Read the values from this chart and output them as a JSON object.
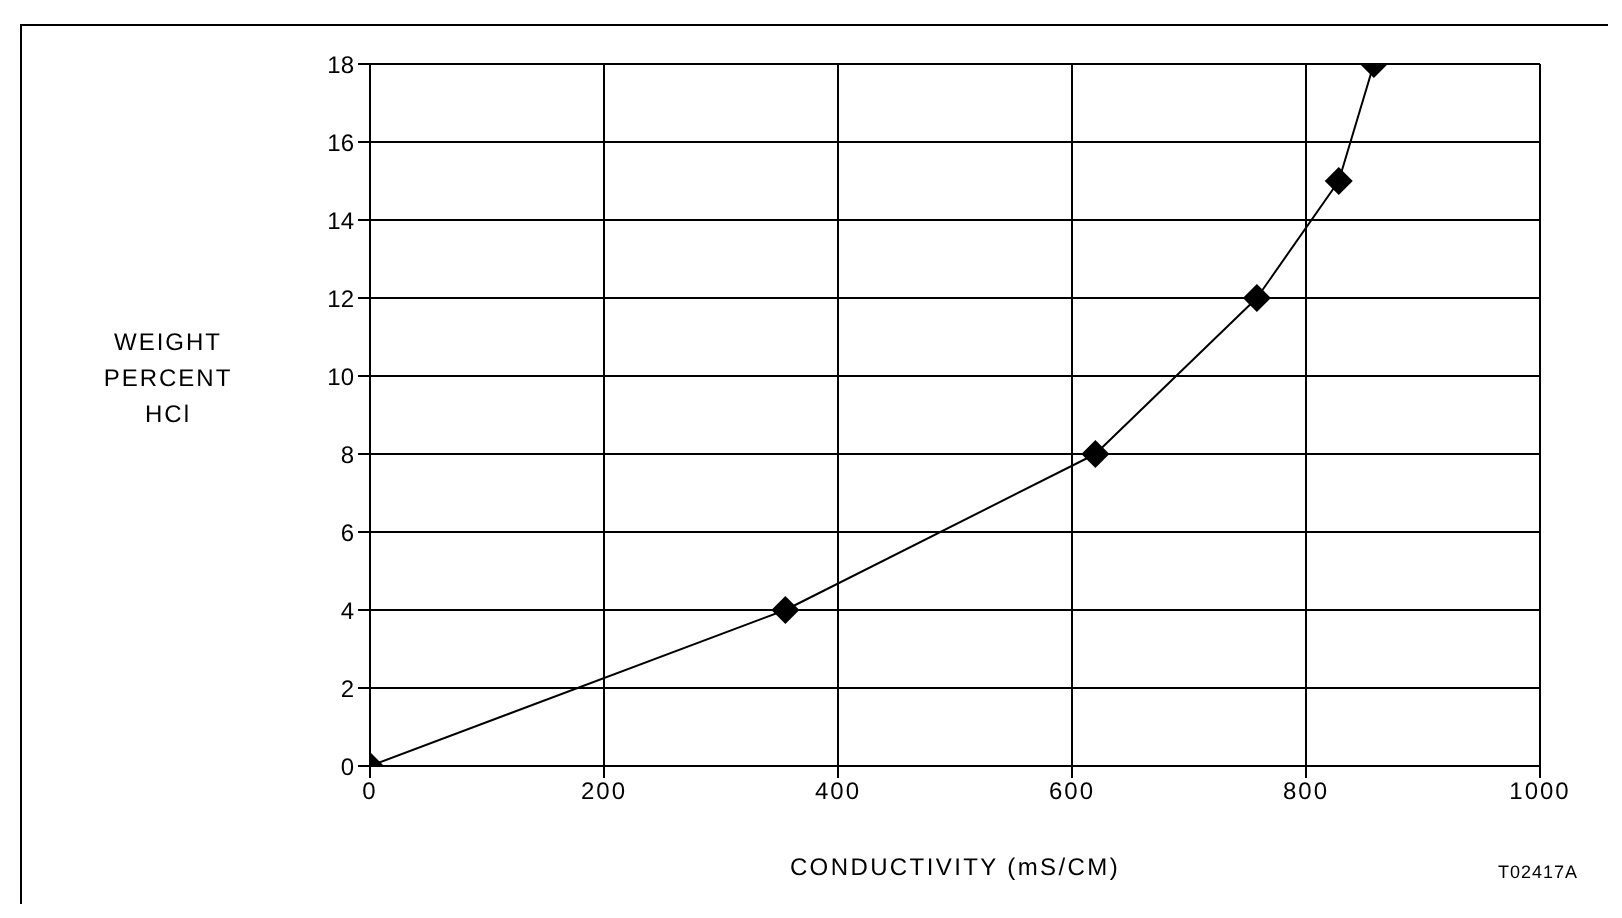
{
  "chart_data": {
    "type": "line",
    "xlabel": "CONDUCTIVITY (mS/CM)",
    "ylabel": "WEIGHT\nPERCENT\nHCl",
    "annotations": [
      "T02417A"
    ],
    "x": [
      0,
      355,
      620,
      758,
      828,
      858
    ],
    "series": [
      {
        "color": "#000000",
        "values": [
          0,
          4,
          8,
          12,
          15,
          18
        ]
      }
    ],
    "xlim": [
      0,
      1000
    ],
    "xticks": [
      0,
      200,
      400,
      600,
      800,
      1000
    ],
    "ylim": [
      0,
      18
    ],
    "yticks": [
      0,
      2,
      4,
      6,
      8,
      10,
      12,
      14,
      16,
      18
    ],
    "grid": true,
    "marker": "diamond",
    "line_style": "solid"
  }
}
